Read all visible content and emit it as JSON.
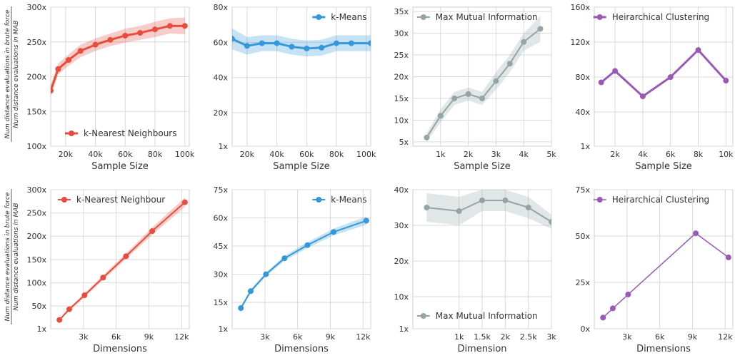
{
  "ylabel": {
    "numerator": "Num distance evaluations in brute force",
    "denominator": "Num distance evaluations in MAB"
  },
  "chart_data": [
    {
      "type": "line",
      "row": 0,
      "col": 0,
      "xlabel": "Sample Size",
      "x": [
        10000,
        15000,
        22000,
        30000,
        40000,
        50000,
        60000,
        70000,
        80000,
        90000,
        100000
      ],
      "series": [
        {
          "name": "k-Nearest Neighbours",
          "color": "#e74c3c",
          "values": [
            180,
            211,
            224,
            237,
            246,
            253,
            259,
            263,
            268,
            273,
            273
          ],
          "band": [
            8,
            8,
            8,
            9,
            9,
            9,
            10,
            10,
            11,
            11,
            12
          ]
        }
      ],
      "xlim": [
        10000,
        103000
      ],
      "ylim": [
        100,
        300
      ],
      "xticks": [
        20000,
        40000,
        60000,
        80000,
        100000
      ],
      "xtick_labels": [
        "20k",
        "40k",
        "60k",
        "80k",
        "100k"
      ],
      "yticks": [
        100,
        150,
        200,
        250,
        300
      ],
      "ytick_labels": [
        "100x",
        "150x",
        "200x",
        "250x",
        "300x"
      ],
      "legend": "lower-right",
      "line_width": 3,
      "marker_size": 4
    },
    {
      "type": "line",
      "row": 0,
      "col": 1,
      "xlabel": "Sample Size",
      "x": [
        10000,
        20000,
        30000,
        40000,
        50000,
        60000,
        70000,
        80000,
        90000,
        103000
      ],
      "series": [
        {
          "name": "k-Means",
          "color": "#3498db",
          "values": [
            62,
            58,
            59.5,
            59.5,
            57.5,
            56.5,
            57,
            59.5,
            59.5,
            59.5
          ],
          "band": [
            6,
            5,
            4.5,
            4.5,
            4.5,
            4.5,
            4.5,
            4.5,
            4.5,
            4.5
          ]
        }
      ],
      "xlim": [
        10000,
        103000
      ],
      "ylim": [
        1,
        80
      ],
      "xticks": [
        20000,
        40000,
        60000,
        80000,
        100000
      ],
      "xtick_labels": [
        "20k",
        "40k",
        "60k",
        "80k",
        "100k"
      ],
      "yticks": [
        1,
        20,
        40,
        60,
        80
      ],
      "ytick_labels": [
        "1x",
        "20x",
        "40x",
        "60x",
        "80x"
      ],
      "legend": "top-right",
      "line_width": 3,
      "marker_size": 4
    },
    {
      "type": "line",
      "row": 0,
      "col": 2,
      "xlabel": "Sample Size",
      "x": [
        500,
        1000,
        1500,
        2000,
        2500,
        3000,
        3500,
        4000,
        4600
      ],
      "series": [
        {
          "name": "Max Mutual Information",
          "color": "#95a5a6",
          "values": [
            6,
            11,
            15,
            16,
            15,
            19,
            23,
            28,
            31
          ],
          "band": [
            1,
            1.5,
            1.5,
            1.5,
            1.5,
            2,
            2,
            2,
            3
          ]
        }
      ],
      "xlim": [
        0,
        5000
      ],
      "ylim": [
        4,
        36
      ],
      "xticks": [
        1000,
        2000,
        3000,
        4000,
        5000
      ],
      "xtick_labels": [
        "1k",
        "2k",
        "3k",
        "4k",
        "5k"
      ],
      "yticks": [
        5,
        10,
        15,
        20,
        25,
        30,
        35
      ],
      "ytick_labels": [
        "5x",
        "10x",
        "15x",
        "20x",
        "25x",
        "30x",
        "35x"
      ],
      "legend": "top-right",
      "line_width": 2,
      "marker_size": 4
    },
    {
      "type": "line",
      "row": 0,
      "col": 3,
      "xlabel": "Sample Size",
      "x": [
        1000,
        2000,
        4000,
        6000,
        8000,
        10000
      ],
      "series": [
        {
          "name": "Heirarchical Clustering",
          "color": "#9b59b6",
          "values": [
            74,
            87,
            58,
            80,
            111,
            76
          ]
        }
      ],
      "xlim": [
        500,
        10500
      ],
      "ylim": [
        1,
        160
      ],
      "xticks": [
        2000,
        4000,
        6000,
        8000,
        10000
      ],
      "xtick_labels": [
        "2k",
        "4k",
        "6k",
        "8k",
        "10k"
      ],
      "yticks": [
        1,
        40,
        80,
        120,
        160
      ],
      "ytick_labels": [
        "1x",
        "40x",
        "80x",
        "120x",
        "160x"
      ],
      "legend": "top-right",
      "line_width": 3,
      "marker_size": 4
    },
    {
      "type": "line",
      "row": 1,
      "col": 0,
      "xlabel": "Dimensions",
      "x": [
        800,
        1700,
        3100,
        4800,
        6900,
        9300,
        12300
      ],
      "series": [
        {
          "name": "k-Nearest Neighbour",
          "color": "#e74c3c",
          "values": [
            20,
            43,
            73,
            111,
            157,
            211,
            273
          ],
          "band": [
            2,
            3,
            4,
            5,
            6,
            8,
            10
          ]
        }
      ],
      "xlim": [
        0,
        12700
      ],
      "ylim": [
        1,
        300
      ],
      "xticks": [
        3000,
        6000,
        9000,
        12000
      ],
      "xtick_labels": [
        "3k",
        "6k",
        "9k",
        "12k"
      ],
      "yticks": [
        1,
        50,
        100,
        150,
        200,
        250,
        300
      ],
      "ytick_labels": [
        "1x",
        "50x",
        "100x",
        "150x",
        "200x",
        "250x",
        "300x"
      ],
      "legend": "top-left",
      "line_width": 2,
      "marker_size": 4
    },
    {
      "type": "line",
      "row": 1,
      "col": 1,
      "xlabel": "Dimensions",
      "x": [
        800,
        1700,
        3100,
        4800,
        6900,
        9300,
        12300
      ],
      "series": [
        {
          "name": "k-Means",
          "color": "#3498db",
          "values": [
            12,
            21,
            30,
            38.5,
            45.5,
            52.5,
            58.5
          ],
          "band": [
            1,
            1,
            1,
            1.3,
            1.5,
            1.8,
            2.2
          ]
        }
      ],
      "xlim": [
        0,
        12700
      ],
      "ylim": [
        1,
        75
      ],
      "xticks": [
        3000,
        6000,
        9000,
        12000
      ],
      "xtick_labels": [
        "3k",
        "6k",
        "9k",
        "12k"
      ],
      "yticks": [
        1,
        15,
        30,
        45,
        60,
        75
      ],
      "ytick_labels": [
        "1x",
        "15x",
        "30x",
        "45x",
        "60x",
        "75x"
      ],
      "legend": "top-right",
      "line_width": 2,
      "marker_size": 4
    },
    {
      "type": "line",
      "row": 1,
      "col": 2,
      "xlabel": "Dimension",
      "x": [
        300,
        1000,
        1500,
        2000,
        2500,
        3000
      ],
      "series": [
        {
          "name": "Max Mutual Information",
          "color": "#95a5a6",
          "values": [
            35,
            34,
            37,
            37,
            35,
            31
          ],
          "band": [
            4,
            4,
            3,
            3,
            3,
            2
          ]
        }
      ],
      "xlim": [
        0,
        3000
      ],
      "ylim": [
        1,
        40
      ],
      "xticks": [
        1000,
        1500,
        2000,
        2500,
        3000
      ],
      "xtick_labels": [
        "1k",
        "1.5k",
        "2k",
        "2.5k",
        "3k"
      ],
      "yticks": [
        1,
        10,
        20,
        30,
        40
      ],
      "ytick_labels": [
        "1x",
        "10x",
        "20x",
        "30x",
        "40x"
      ],
      "legend": "lower-right",
      "line_width": 2,
      "marker_size": 4
    },
    {
      "type": "line",
      "row": 1,
      "col": 3,
      "xlabel": "Dimensions",
      "x": [
        800,
        1700,
        3100,
        9300,
        12300
      ],
      "series": [
        {
          "name": "Heirarchical Clustering",
          "color": "#9b59b6",
          "values": [
            6,
            11,
            18.5,
            51.5,
            38.5
          ]
        }
      ],
      "xlim": [
        0,
        12700
      ],
      "ylim": [
        0,
        75
      ],
      "xticks": [
        3000,
        6000,
        9000,
        12000
      ],
      "xtick_labels": [
        "3k",
        "6k",
        "9k",
        "12k"
      ],
      "yticks": [
        0,
        25,
        50,
        75
      ],
      "ytick_labels": [
        "0x",
        "25x",
        "50x",
        "75x"
      ],
      "legend": "top-right",
      "line_width": 1.5,
      "marker_size": 4
    }
  ]
}
